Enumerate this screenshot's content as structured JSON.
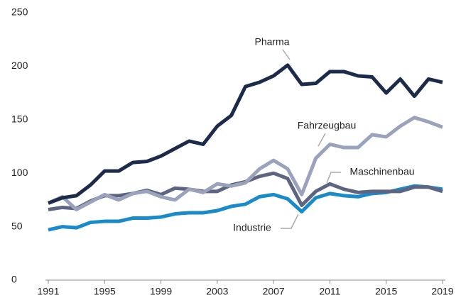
{
  "chart_data": {
    "type": "line",
    "x": [
      1991,
      1992,
      1993,
      1994,
      1995,
      1996,
      1997,
      1998,
      1999,
      2000,
      2001,
      2002,
      2003,
      2004,
      2005,
      2006,
      2007,
      2008,
      2009,
      2010,
      2011,
      2012,
      2013,
      2014,
      2015,
      2016,
      2017,
      2018,
      2019
    ],
    "xlim": [
      1991,
      2019
    ],
    "xticks": [
      1991,
      1995,
      1999,
      2003,
      2007,
      2011,
      2015,
      2019
    ],
    "ylim": [
      0,
      250
    ],
    "yticks": [
      0,
      50,
      100,
      150,
      200,
      250
    ],
    "grid": false,
    "series": [
      {
        "name": "Pharma",
        "color": "#1c2b4a",
        "values": [
          72,
          77,
          79,
          89,
          102,
          102,
          110,
          111,
          116,
          123,
          130,
          127,
          144,
          154,
          181,
          185,
          191,
          201,
          183,
          184,
          195,
          195,
          191,
          190,
          175,
          188,
          172,
          188,
          185
        ]
      },
      {
        "name": "Fahrzeugbau",
        "color": "#9aa3bb",
        "values": [
          72,
          78,
          66,
          73,
          80,
          75,
          81,
          83,
          78,
          75,
          85,
          82,
          90,
          88,
          91,
          104,
          112,
          104,
          80,
          114,
          127,
          124,
          124,
          136,
          134,
          144,
          152,
          148,
          143
        ]
      },
      {
        "name": "Maschinenbau",
        "color": "#5d6582",
        "values": [
          66,
          68,
          67,
          74,
          79,
          79,
          81,
          84,
          80,
          86,
          85,
          83,
          83,
          89,
          92,
          97,
          100,
          95,
          70,
          83,
          90,
          85,
          82,
          83,
          83,
          83,
          87,
          87,
          83
        ]
      },
      {
        "name": "Industrie",
        "color": "#1a8bc9",
        "values": [
          47,
          50,
          49,
          54,
          55,
          55,
          58,
          58,
          59,
          62,
          63,
          63,
          65,
          69,
          71,
          78,
          80,
          76,
          64,
          77,
          81,
          79,
          78,
          81,
          82,
          85,
          88,
          87,
          85
        ]
      }
    ]
  }
}
